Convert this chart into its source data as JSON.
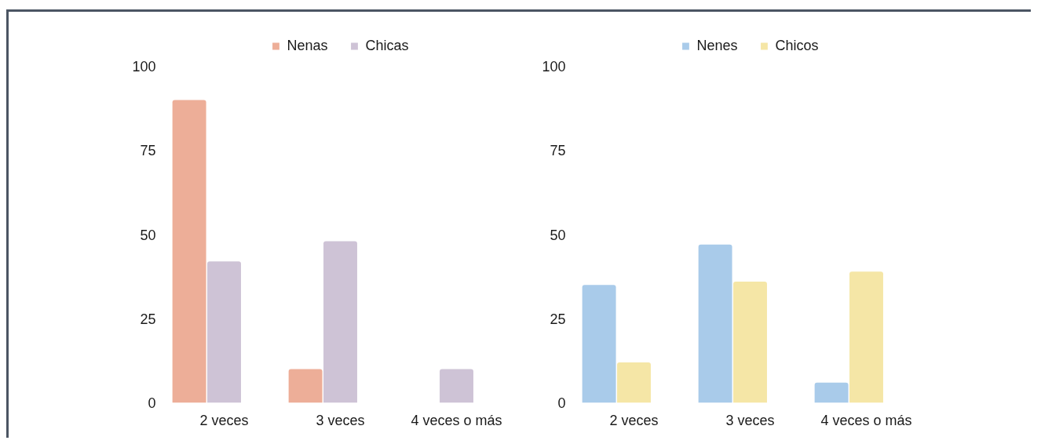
{
  "chart_data": [
    {
      "type": "bar",
      "categories": [
        "2 veces",
        "3 veces",
        "4 veces o más"
      ],
      "series": [
        {
          "name": "Nenas",
          "color": "#edae98",
          "values": [
            90,
            10,
            null
          ]
        },
        {
          "name": "Chicas",
          "color": "#cec3d6",
          "values": [
            42,
            48,
            10
          ]
        }
      ],
      "ylim": [
        0,
        100
      ],
      "yticks": [
        0,
        25,
        50,
        75,
        100
      ],
      "grid": false,
      "legend": "top"
    },
    {
      "type": "bar",
      "categories": [
        "2 veces",
        "3 veces",
        "4 veces o más"
      ],
      "series": [
        {
          "name": "Nenes",
          "color": "#a9cbea",
          "values": [
            35,
            47,
            6
          ]
        },
        {
          "name": "Chicos",
          "color": "#f5e6a6",
          "values": [
            12,
            36,
            39
          ]
        }
      ],
      "ylim": [
        0,
        100
      ],
      "yticks": [
        0,
        25,
        50,
        75,
        100
      ],
      "grid": false,
      "legend": "top"
    }
  ]
}
